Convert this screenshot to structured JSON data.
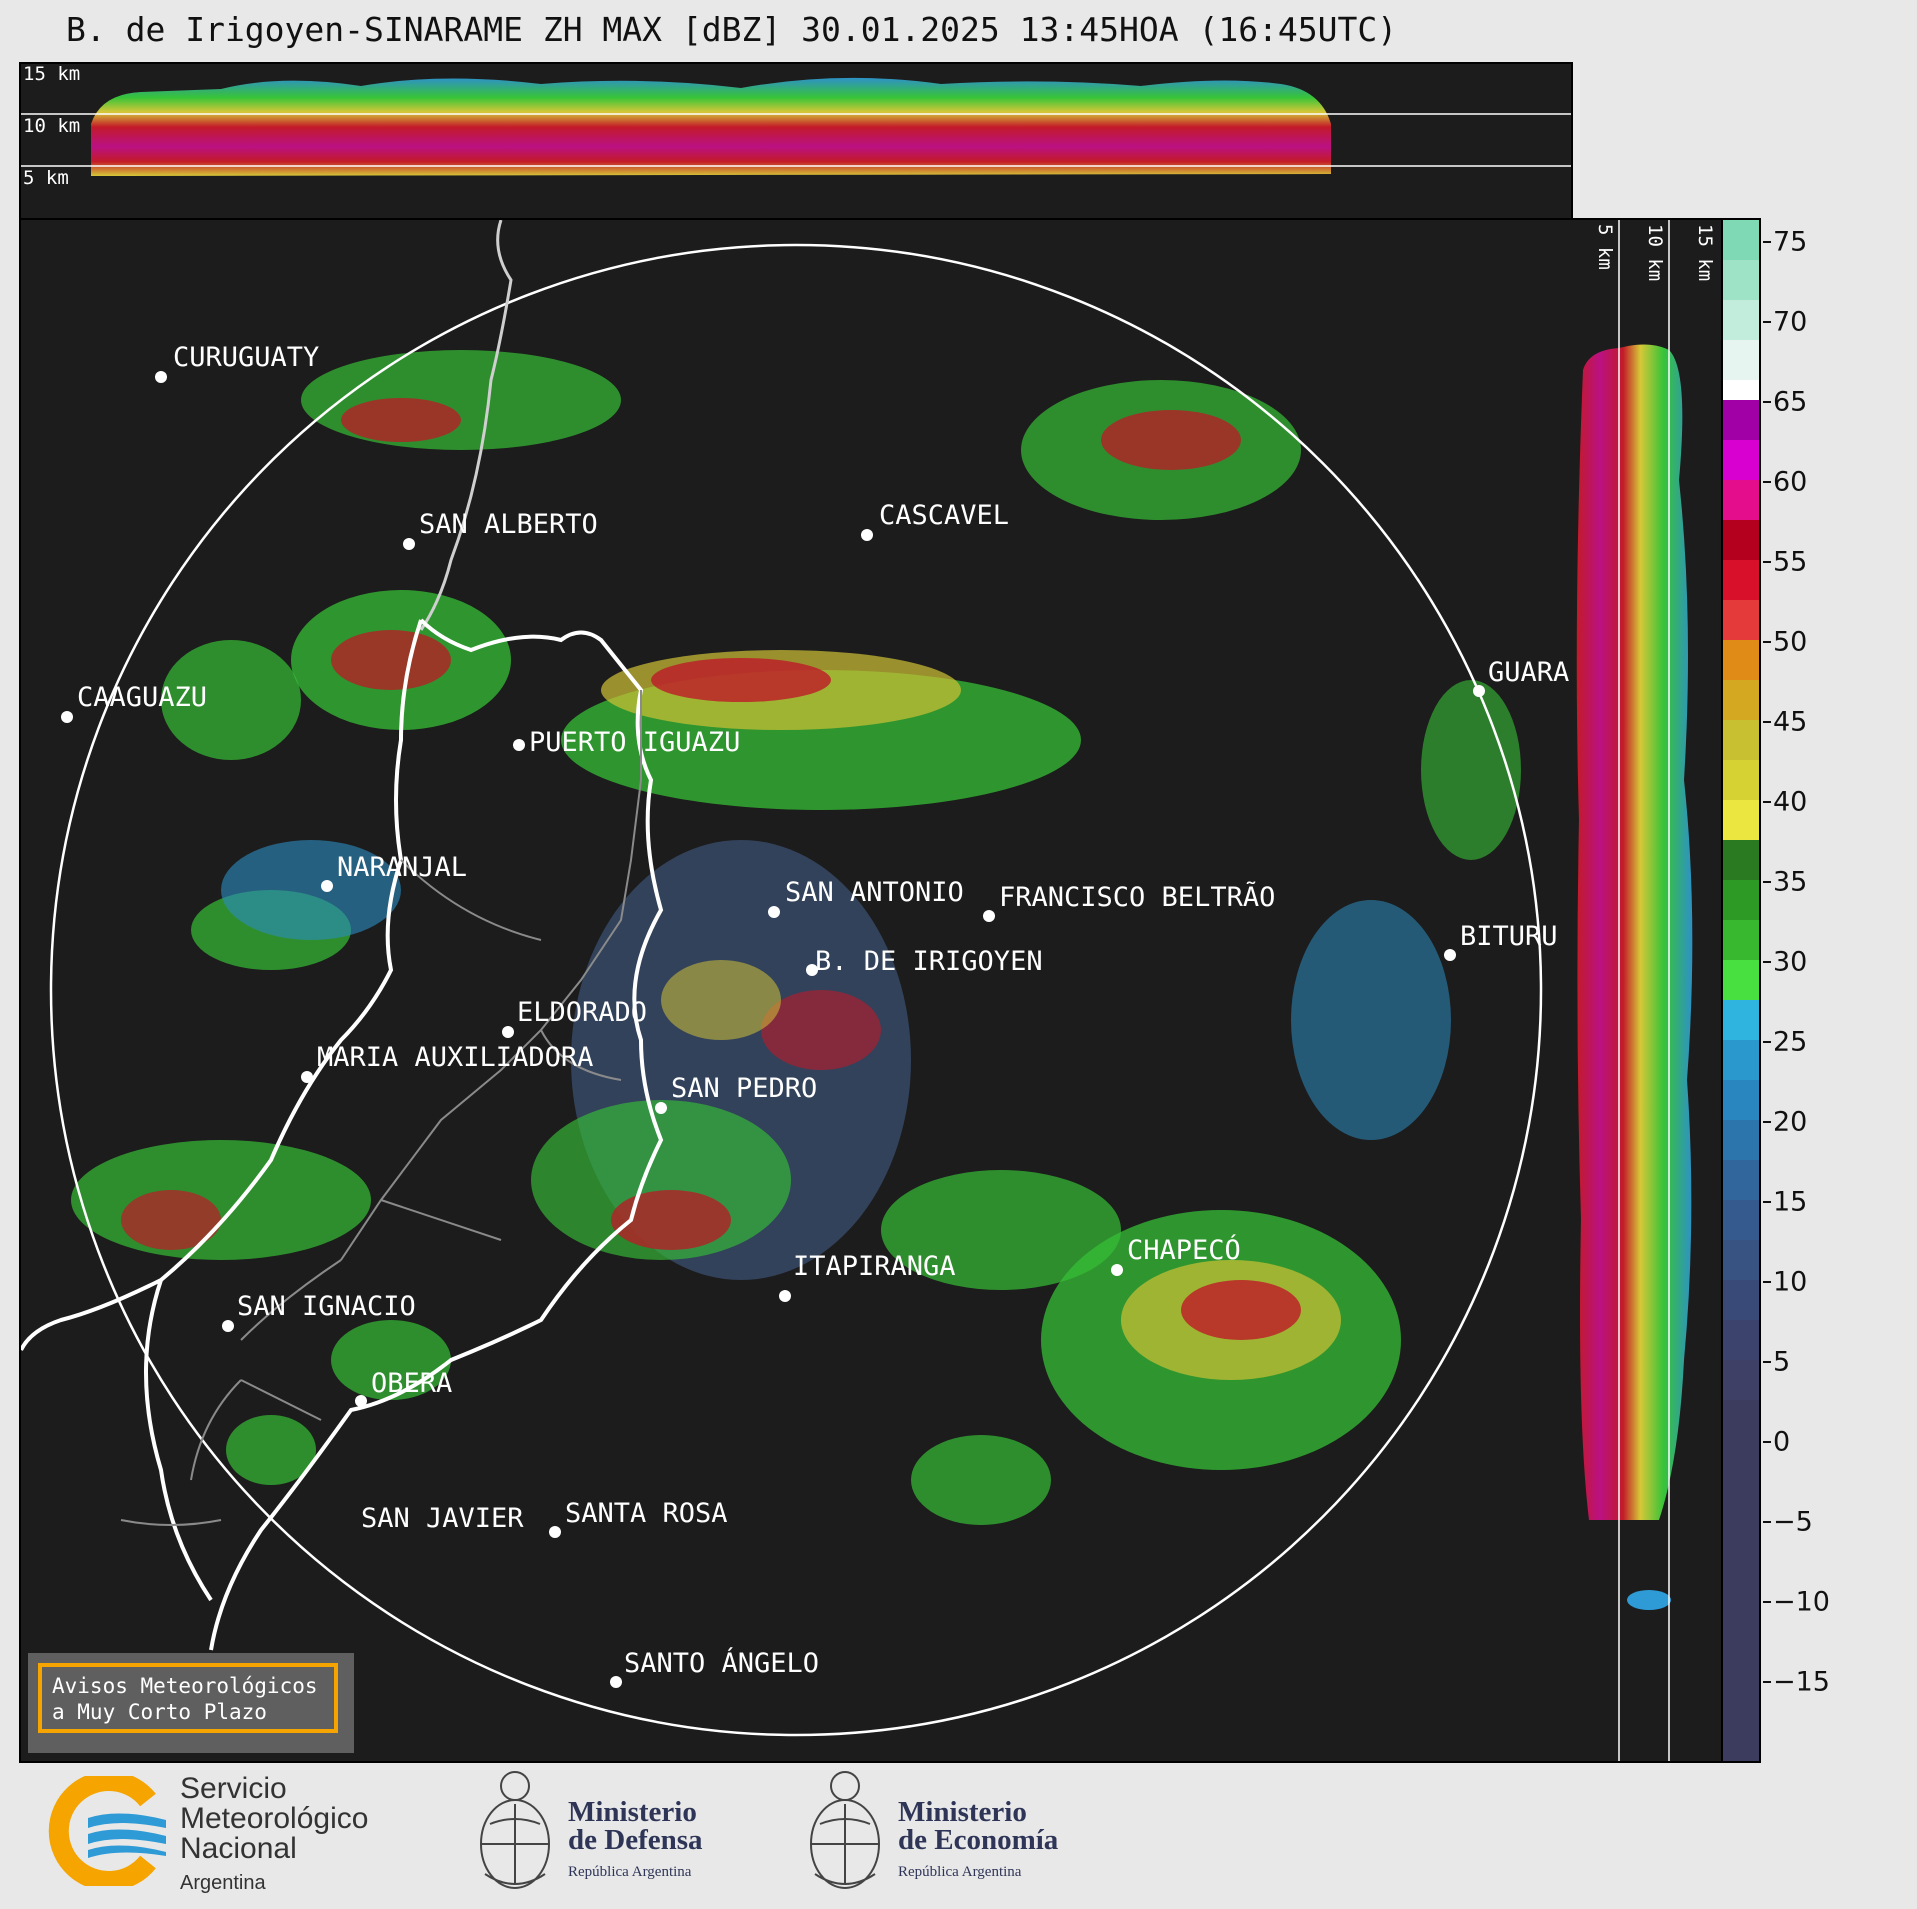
{
  "title": "B. de Irigoyen-SINARAME ZH MAX [dBZ] 30.01.2025 13:45HOA (16:45UTC)",
  "top_panel": {
    "height_labels": [
      "15 km",
      "10 km",
      "5 km"
    ]
  },
  "side_panel": {
    "height_labels": [
      "5 km",
      "10 km",
      "15 km"
    ]
  },
  "map": {
    "cities": [
      {
        "name": "CURUGUATY"
      },
      {
        "name": "SAN ALBERTO"
      },
      {
        "name": "CASCAVEL"
      },
      {
        "name": "CAAGUAZU"
      },
      {
        "name": "PUERTO IGUAZU"
      },
      {
        "name": "GUARA"
      },
      {
        "name": "NARANJAL"
      },
      {
        "name": "SAN ANTONIO"
      },
      {
        "name": "FRANCISCO BELTRÃO"
      },
      {
        "name": "BITURU"
      },
      {
        "name": "B. DE IRIGOYEN"
      },
      {
        "name": "ELDORADO"
      },
      {
        "name": "MARIA AUXILIADORA"
      },
      {
        "name": "SAN PEDRO"
      },
      {
        "name": "ITAPIRANGA"
      },
      {
        "name": "CHAPECÓ"
      },
      {
        "name": "SAN IGNACIO"
      },
      {
        "name": "OBERA"
      },
      {
        "name": "SAN JAVIER"
      },
      {
        "name": "SANTA ROSA"
      },
      {
        "name": "SANTO ÁNGELO"
      }
    ]
  },
  "colorbar": {
    "labels": [
      "75",
      "70",
      "65",
      "60",
      "55",
      "50",
      "45",
      "40",
      "35",
      "30",
      "25",
      "20",
      "15",
      "10",
      "5",
      "0",
      "−5",
      "−10",
      "−15"
    ],
    "unit": "dBZ"
  },
  "alert_box": {
    "line1": "Avisos Meteorológicos",
    "line2": "a Muy Corto Plazo"
  },
  "footer": {
    "smn_line1": "Servicio",
    "smn_line2": "Meteorológico",
    "smn_line3": "Nacional",
    "smn_line4": "Argentina",
    "defensa_line1": "Ministerio",
    "defensa_line2": "de Defensa",
    "defensa_line3": "República Argentina",
    "economia_line1": "Ministerio",
    "economia_line2": "de Economía",
    "economia_line3": "República Argentina"
  },
  "colors": {
    "background": "#e8e8e8",
    "panel": "#1c1c1c",
    "accent_orange": "#f5a400",
    "smn_blue": "#2e9ad6",
    "smn_yellow": "#f5a400"
  }
}
